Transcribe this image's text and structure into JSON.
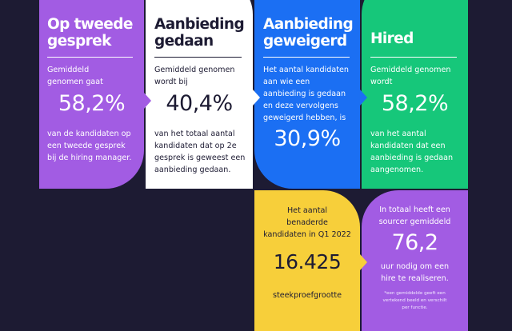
{
  "cards": [
    {
      "title_lines": [
        "Op tweede",
        "gesprek"
      ],
      "pre_lines": [
        "Gemiddeld",
        "genomen gaat"
      ],
      "value": "58,2%",
      "post_lines": [
        "van de kandidaten op",
        "een tweede gesprek",
        "bij de hiring manager."
      ],
      "color": "#a25ce3"
    },
    {
      "title_lines": [
        "Aanbieding",
        "gedaan"
      ],
      "pre_lines": [
        "Gemiddeld genomen",
        "wordt bij"
      ],
      "value": "40,4%",
      "post_lines": [
        "van het totaal aantal",
        "kandidaten dat op 2e",
        "gesprek is geweest een",
        "aanbieding gedaan."
      ],
      "color": "#ffffff"
    },
    {
      "title_lines": [
        "Aanbieding",
        "geweigerd"
      ],
      "pre_lines": [
        "Het aantal kandidaten",
        "aan wie een",
        "aanbieding is gedaan",
        "en deze vervolgens",
        "geweigerd hebben, is"
      ],
      "value": "30,9%",
      "color": "#1b6ff3"
    },
    {
      "title_lines": [
        "Hired"
      ],
      "pre_lines": [
        "Gemiddeld genomen",
        "wordt"
      ],
      "value": "58,2%",
      "post_lines": [
        "van het aantal",
        "kandidaten dat een",
        "aanbieding is gedaan",
        "aangenomen."
      ],
      "color": "#16c77a"
    },
    {
      "pre_lines": [
        "Het aantal",
        "benaderde",
        "kandidaten in Q1 2022"
      ],
      "value": "16.425",
      "post_lines": [
        "steekproefgrootte"
      ],
      "color": "#f7cf3a"
    },
    {
      "pre_lines": [
        "In totaal heeft een",
        "sourcer gemiddeld"
      ],
      "value": "76,2",
      "post_lines": [
        "uur nodig om een",
        "hire te realiseren."
      ],
      "footnote_lines": [
        "*een gemiddelde geeft een",
        "vertekend beeld en verschilt",
        "per functie."
      ],
      "color": "#a25ce3"
    }
  ],
  "colors": {
    "background": "#1d1b33",
    "yellow_marker": "#f7cf3a"
  }
}
